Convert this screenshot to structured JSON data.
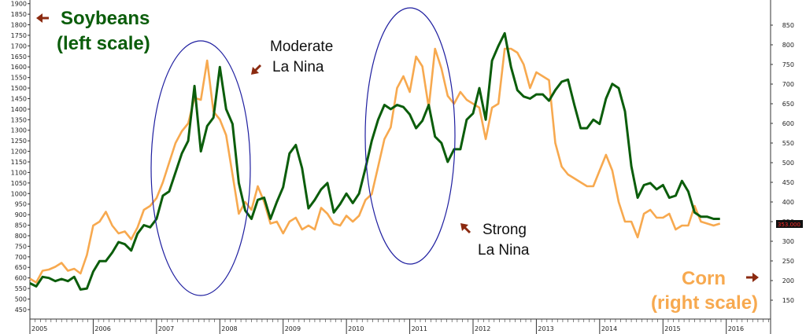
{
  "chart_data": {
    "type": "line",
    "left_axis": {
      "ticks": [
        450,
        500,
        550,
        600,
        650,
        700,
        750,
        800,
        850,
        900,
        950,
        1000,
        1050,
        1100,
        1150,
        1200,
        1250,
        1300,
        1350,
        1400,
        1450,
        1500,
        1550,
        1600,
        1650,
        1700,
        1750,
        1800,
        1850,
        1900
      ],
      "ylim": [
        405,
        1910
      ]
    },
    "right_axis": {
      "ticks": [
        150,
        200,
        250,
        300,
        350,
        400,
        450,
        500,
        550,
        600,
        650,
        700,
        750,
        800,
        850
      ],
      "ylim": [
        102,
        910
      ]
    },
    "x_ticks": [
      "2005",
      "2006",
      "2007",
      "2008",
      "2009",
      "2010",
      "2011",
      "2012",
      "2013",
      "2014",
      "2015",
      "2016"
    ],
    "xlim": [
      2005.0,
      2016.7
    ],
    "last_value_label": "353.000",
    "series": [
      {
        "name": "Soybeans",
        "color": "#0b5d0b",
        "x": [
          2005.0,
          2005.1,
          2005.2,
          2005.3,
          2005.4,
          2005.5,
          2005.6,
          2005.7,
          2005.8,
          2005.9,
          2006.0,
          2006.1,
          2006.2,
          2006.3,
          2006.4,
          2006.5,
          2006.6,
          2006.7,
          2006.8,
          2006.9,
          2007.0,
          2007.1,
          2007.2,
          2007.3,
          2007.4,
          2007.5,
          2007.6,
          2007.7,
          2007.8,
          2007.9,
          2008.0,
          2008.1,
          2008.2,
          2008.3,
          2008.4,
          2008.5,
          2008.6,
          2008.7,
          2008.8,
          2008.9,
          2009.0,
          2009.1,
          2009.2,
          2009.3,
          2009.4,
          2009.5,
          2009.6,
          2009.7,
          2009.8,
          2009.9,
          2010.0,
          2010.1,
          2010.2,
          2010.3,
          2010.4,
          2010.5,
          2010.6,
          2010.7,
          2010.8,
          2010.9,
          2011.0,
          2011.1,
          2011.2,
          2011.3,
          2011.4,
          2011.5,
          2011.6,
          2011.7,
          2011.8,
          2011.9,
          2012.0,
          2012.1,
          2012.2,
          2012.3,
          2012.4,
          2012.5,
          2012.6,
          2012.7,
          2012.8,
          2012.9,
          2013.0,
          2013.1,
          2013.2,
          2013.3,
          2013.4,
          2013.5,
          2013.6,
          2013.7,
          2013.8,
          2013.9,
          2014.0,
          2014.1,
          2014.2,
          2014.3,
          2014.4,
          2014.5,
          2014.6,
          2014.7,
          2014.8,
          2014.9,
          2015.0,
          2015.1,
          2015.2,
          2015.3,
          2015.4,
          2015.5,
          2015.6,
          2015.7,
          2015.8,
          2015.9
        ],
        "values": [
          575,
          560,
          605,
          600,
          585,
          595,
          585,
          605,
          545,
          550,
          630,
          680,
          680,
          720,
          770,
          760,
          730,
          810,
          850,
          840,
          880,
          990,
          1010,
          1100,
          1190,
          1250,
          1510,
          1200,
          1320,
          1360,
          1600,
          1400,
          1330,
          1050,
          920,
          880,
          970,
          980,
          880,
          960,
          1030,
          1190,
          1230,
          1120,
          930,
          970,
          1020,
          1050,
          910,
          950,
          1000,
          955,
          1000,
          1120,
          1250,
          1350,
          1420,
          1400,
          1420,
          1410,
          1375,
          1310,
          1345,
          1420,
          1270,
          1240,
          1150,
          1210,
          1210,
          1350,
          1380,
          1500,
          1350,
          1630,
          1700,
          1760,
          1600,
          1490,
          1460,
          1450,
          1470,
          1470,
          1440,
          1490,
          1530,
          1540,
          1420,
          1310,
          1310,
          1350,
          1330,
          1450,
          1520,
          1500,
          1390,
          1130,
          980,
          1040,
          1050,
          1020,
          1040,
          980,
          990,
          1060,
          1010,
          910,
          890,
          890,
          880,
          880
        ]
      },
      {
        "name": "Corn",
        "color": "#f7a94f",
        "x": [
          2005.0,
          2005.1,
          2005.2,
          2005.3,
          2005.4,
          2005.5,
          2005.6,
          2005.7,
          2005.8,
          2005.9,
          2006.0,
          2006.1,
          2006.2,
          2006.3,
          2006.4,
          2006.5,
          2006.6,
          2006.7,
          2006.8,
          2006.9,
          2007.0,
          2007.1,
          2007.2,
          2007.3,
          2007.4,
          2007.5,
          2007.6,
          2007.7,
          2007.8,
          2007.9,
          2008.0,
          2008.1,
          2008.2,
          2008.3,
          2008.4,
          2008.5,
          2008.6,
          2008.7,
          2008.8,
          2008.9,
          2009.0,
          2009.1,
          2009.2,
          2009.3,
          2009.4,
          2009.5,
          2009.6,
          2009.7,
          2009.8,
          2009.9,
          2010.0,
          2010.1,
          2010.2,
          2010.3,
          2010.4,
          2010.5,
          2010.6,
          2010.7,
          2010.8,
          2010.9,
          2011.0,
          2011.1,
          2011.2,
          2011.3,
          2011.4,
          2011.5,
          2011.6,
          2011.7,
          2011.8,
          2011.9,
          2012.0,
          2012.1,
          2012.2,
          2012.3,
          2012.4,
          2012.5,
          2012.6,
          2012.7,
          2012.8,
          2012.9,
          2013.0,
          2013.1,
          2013.2,
          2013.3,
          2013.4,
          2013.5,
          2013.6,
          2013.7,
          2013.8,
          2013.9,
          2014.0,
          2014.1,
          2014.2,
          2014.3,
          2014.4,
          2014.5,
          2014.6,
          2014.7,
          2014.8,
          2014.9,
          2015.0,
          2015.1,
          2015.2,
          2015.3,
          2015.4,
          2015.5,
          2015.6,
          2015.7,
          2015.8,
          2015.9
        ],
        "values": [
          205,
          195,
          225,
          228,
          235,
          245,
          225,
          230,
          218,
          265,
          340,
          350,
          375,
          340,
          320,
          325,
          305,
          335,
          380,
          390,
          410,
          450,
          500,
          550,
          580,
          600,
          665,
          660,
          760,
          630,
          610,
          570,
          470,
          370,
          400,
          380,
          440,
          400,
          345,
          350,
          320,
          350,
          360,
          330,
          340,
          330,
          385,
          370,
          345,
          340,
          365,
          350,
          365,
          405,
          420,
          490,
          560,
          590,
          690,
          720,
          680,
          770,
          745,
          640,
          790,
          740,
          670,
          650,
          680,
          660,
          650,
          640,
          560,
          640,
          650,
          790,
          790,
          780,
          750,
          690,
          730,
          720,
          710,
          550,
          490,
          470,
          460,
          450,
          440,
          440,
          480,
          520,
          480,
          400,
          350,
          350,
          310,
          370,
          380,
          360,
          360,
          370,
          330,
          340,
          340,
          390,
          350,
          345,
          340,
          345
        ]
      }
    ],
    "annotations": {
      "soybeans_l1": "Soybeans",
      "soybeans_l2": "(left scale)",
      "corn_l1": "Corn",
      "corn_l2": "(right scale)",
      "moderate_l1": "Moderate",
      "moderate_l2": "La Nina",
      "strong_l1": "Strong",
      "strong_l2": "La Nina"
    },
    "colors": {
      "ellipse": "#1f1fa0",
      "arrow": "#8b2a10",
      "soy_text": "#0b5d0b",
      "corn_text": "#f7a94f"
    },
    "grid": false,
    "legend": "none"
  }
}
